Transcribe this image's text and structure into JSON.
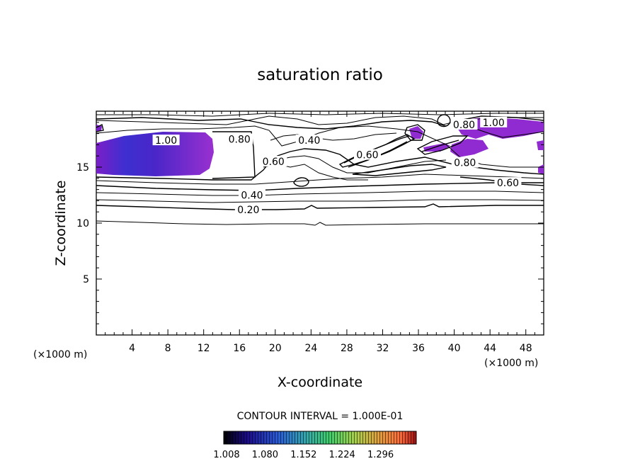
{
  "chart_data": {
    "type": "contour",
    "title": "saturation ratio",
    "xlabel": "X-coordinate",
    "ylabel": "Z-coordinate",
    "x_unit_label": "(×1000 m)",
    "y_unit_label": "(×1000 m)",
    "xlim": [
      0,
      50
    ],
    "ylim": [
      0,
      20
    ],
    "x_ticks": [
      4,
      8,
      12,
      16,
      20,
      24,
      28,
      32,
      36,
      40,
      44,
      48
    ],
    "y_ticks": [
      5,
      10,
      15
    ],
    "contour_interval_text": "CONTOUR INTERVAL = 1.000E-01",
    "contour_labels": [
      {
        "text": "0.20",
        "x": 17.0,
        "z": 11.2
      },
      {
        "text": "0.40",
        "x": 17.4,
        "z": 12.5
      },
      {
        "text": "0.40",
        "x": 23.8,
        "z": 17.4
      },
      {
        "text": "0.60",
        "x": 19.8,
        "z": 15.5
      },
      {
        "text": "0.60",
        "x": 30.3,
        "z": 16.1
      },
      {
        "text": "0.60",
        "x": 46.0,
        "z": 13.6
      },
      {
        "text": "0.80",
        "x": 16.0,
        "z": 17.5
      },
      {
        "text": "0.80",
        "x": 41.1,
        "z": 18.8
      },
      {
        "text": "0.80",
        "x": 41.2,
        "z": 15.4
      },
      {
        "text": "1.00",
        "x": 7.8,
        "z": 17.4
      },
      {
        "text": "1.00",
        "x": 44.4,
        "z": 19.0
      }
    ],
    "colorbar": {
      "tick_labels": [
        "1.008",
        "1.080",
        "1.152",
        "1.224",
        "1.296"
      ],
      "colors": [
        "#000000",
        "#1a0a8c",
        "#2e5ed6",
        "#3fb0b0",
        "#4fd06a",
        "#9ad64f",
        "#e0c040",
        "#ff7a3a",
        "#e02a2a",
        "#a01010"
      ]
    },
    "fill_color": "#8f2bd1",
    "grid": false
  }
}
